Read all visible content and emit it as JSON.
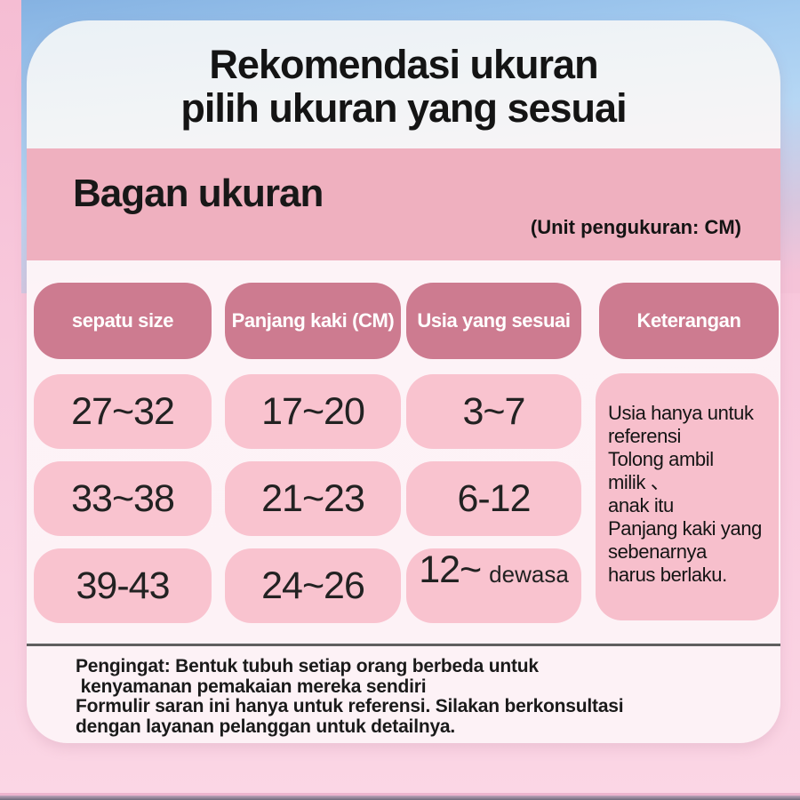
{
  "header": {
    "title": "Rekomendasi ukuran\npilih ukuran yang sesuai"
  },
  "size_chart": {
    "heading": "Bagan ukuran",
    "unit_note": "(Unit pengukuran: CM)",
    "columns": [
      "sepatu size",
      "Panjang kaki (CM)",
      "Usia yang sesuai",
      "Keterangan"
    ],
    "rows": [
      {
        "sepatu_size": "27~32",
        "panjang_kaki": "17~20",
        "usia": "3~7"
      },
      {
        "sepatu_size": "33~38",
        "panjang_kaki": "21~23",
        "usia": "6-12"
      },
      {
        "sepatu_size": "39-43",
        "panjang_kaki": "24~26",
        "usia": "12~",
        "usia_suffix": "dewasa"
      }
    ],
    "keterangan": "Usia hanya untuk\nreferensi\nTolong ambil\nmilik 、\nanak itu\nPanjang kaki yang\nsebenarnya\nharus berlaku."
  },
  "footer": {
    "note": "Pengingat: Bentuk tubuh setiap orang berbeda untuk\n kenyamanan pemakaian mereka sendiri\nFormulir saran ini hanya untuk referensi. Silakan berkonsultasi\ndengan layanan pelanggan untuk detailnya."
  },
  "chart_data": {
    "type": "table",
    "title": "Bagan ukuran",
    "unit": "CM",
    "columns": [
      "sepatu size",
      "Panjang kaki (CM)",
      "Usia yang sesuai",
      "Keterangan"
    ],
    "rows": [
      [
        "27~32",
        "17~20",
        "3~7"
      ],
      [
        "33~38",
        "21~23",
        "6-12"
      ],
      [
        "39-43",
        "24~26",
        "12~ dewasa"
      ]
    ],
    "keterangan_merged_cell": "Usia hanya untuk referensi Tolong ambil milik、 anak itu Panjang kaki yang sebenarnya harus berlaku."
  },
  "colors": {
    "background_pink": "#f8c8dc",
    "background_blue": "#9cc6ee",
    "band_pink": "#efb0bf",
    "header_pill": "#cd7b90",
    "cell_pink": "#f9c3cf",
    "note_cell_pink": "#f7bfcc",
    "text": "#161616",
    "divider": "#5f5f5f"
  }
}
